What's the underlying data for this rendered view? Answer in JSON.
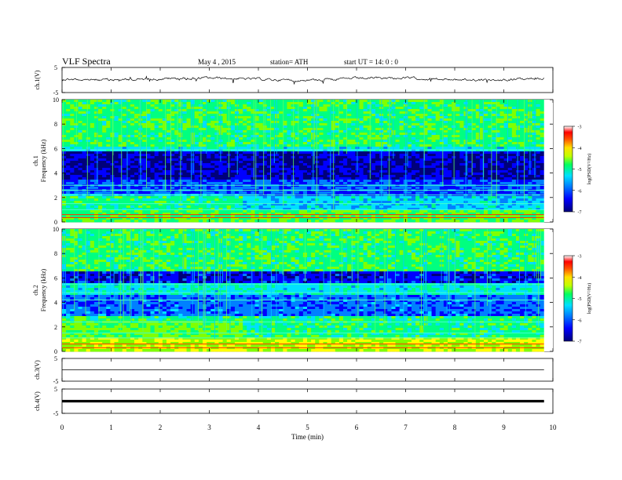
{
  "header": {
    "title": "VLF  Spectra",
    "date": "May 4  ,  2015",
    "station": "station= ATH",
    "start": "start  UT  =    14: 0  : 0"
  },
  "chart_data": [
    {
      "type": "line",
      "panel": "ch1-waveform",
      "ylabel": "ch.1(V)",
      "ylim": [
        -5,
        5
      ],
      "yticks": [
        "5",
        "-5"
      ],
      "xlim": [
        0,
        10
      ],
      "series": [
        {
          "values_description_none": "",
          "approx_level": 0.2
        }
      ]
    },
    {
      "type": "heatmap",
      "panel": "ch1-spectrogram",
      "ylabel": "ch.1\nFrequency  (kHz)",
      "ylim": [
        0,
        10
      ],
      "yticks": [
        "0",
        "2",
        "4",
        "6",
        "8",
        "10"
      ],
      "xlim": [
        0,
        9.8
      ],
      "colorbar": {
        "label": "log(PSD(V²/Hz)",
        "range": [
          -7,
          -3
        ],
        "ticks": [
          "-3",
          "-4",
          "-5",
          "-6",
          "-7"
        ]
      }
    },
    {
      "type": "heatmap",
      "panel": "ch2-spectrogram",
      "ylabel": "ch.2\nFrequency  (kHz)",
      "ylim": [
        0,
        10
      ],
      "yticks": [
        "0",
        "2",
        "4",
        "6",
        "8",
        "10"
      ],
      "xlim": [
        0,
        9.8
      ],
      "colorbar": {
        "label": "log(PSD(V²/Hz)",
        "range": [
          -7,
          -3
        ],
        "ticks": [
          "-3",
          "-4",
          "-5",
          "-6",
          "-7"
        ]
      }
    },
    {
      "type": "line",
      "panel": "ch3-waveform",
      "ylabel": "ch.3(V)",
      "ylim": [
        -5,
        5
      ],
      "yticks": [
        "5",
        "-5"
      ],
      "series": [
        {
          "approx_level": 0.0
        }
      ]
    },
    {
      "type": "line",
      "panel": "ch4-waveform",
      "ylabel": "ch.4(V)",
      "ylim": [
        -5,
        5
      ],
      "yticks": [
        "5",
        "-5"
      ],
      "series": [
        {
          "approx_level": 0.0
        }
      ]
    }
  ],
  "xaxis": {
    "label": "Time  (min)",
    "ticks": [
      "0",
      "1",
      "2",
      "3",
      "4",
      "5",
      "6",
      "7",
      "8",
      "9",
      "10"
    ],
    "range": [
      0,
      10
    ]
  },
  "colors": {
    "scale": [
      "#00007a",
      "#0000ff",
      "#0080ff",
      "#00e0ff",
      "#00ff80",
      "#80ff00",
      "#ffff00",
      "#ff8000",
      "#ff0000",
      "#ffffff"
    ]
  }
}
